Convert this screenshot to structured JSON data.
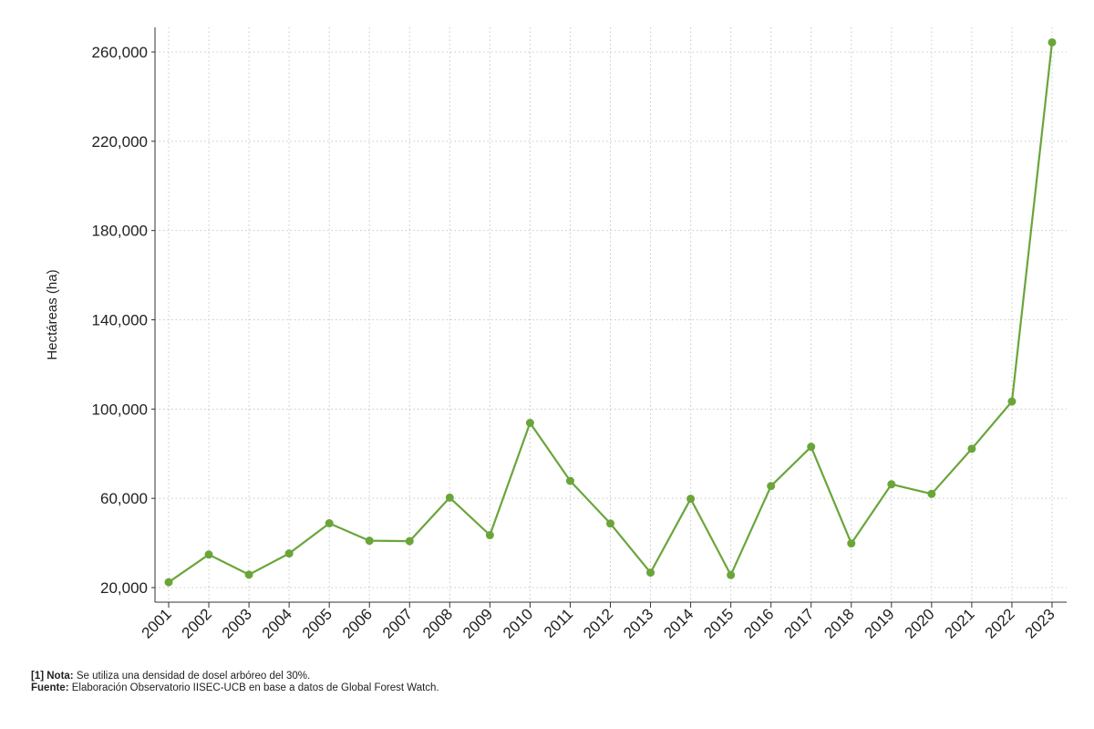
{
  "chart_data": {
    "type": "line",
    "x": [
      "2001",
      "2002",
      "2003",
      "2004",
      "2005",
      "2006",
      "2007",
      "2008",
      "2009",
      "2010",
      "2011",
      "2012",
      "2013",
      "2014",
      "2015",
      "2016",
      "2017",
      "2018",
      "2019",
      "2020",
      "2021",
      "2022",
      "2023"
    ],
    "series": [
      {
        "values": [
          22400,
          34800,
          25800,
          35300,
          48800,
          41000,
          40800,
          60300,
          43500,
          93800,
          67800,
          48700,
          26700,
          59800,
          25600,
          65500,
          83100,
          39800,
          66300,
          62000,
          82200,
          103400,
          264300
        ]
      }
    ],
    "title": "",
    "xlabel": "",
    "ylabel": "Hectáreas (ha)",
    "ylim": [
      17500,
      268000
    ],
    "yticks": [
      20000,
      60000,
      100000,
      140000,
      180000,
      220000,
      260000
    ],
    "ytick_labels": [
      "20,000",
      "60,000",
      "100,000",
      "140,000",
      "180,000",
      "220,000",
      "260,000"
    ],
    "grid": true,
    "legend": "none",
    "colors": {
      "line": "#6aa53a",
      "grid": "#c8c8c8",
      "axis": "#333333"
    }
  },
  "notes": {
    "nota_label": "[1] Nota:",
    "nota_text": " Se utiliza una densidad de dosel arbóreo del 30%.",
    "fuente_label": "Fuente:",
    "fuente_text": " Elaboración Observatorio IISEC-UCB en base a datos de Global Forest Watch."
  }
}
